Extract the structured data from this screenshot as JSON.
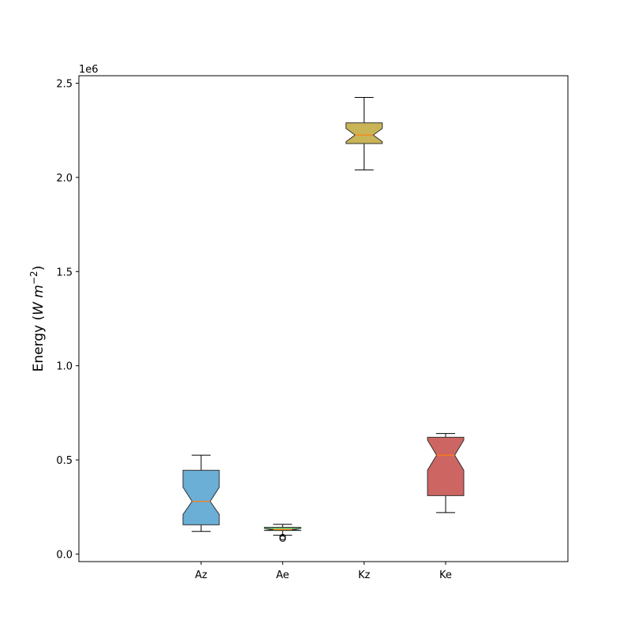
{
  "chart_data": {
    "type": "boxplot",
    "notched": true,
    "ylabel_text": "Energy (",
    "ylabel_math": "W m",
    "ylabel_sup": "−2",
    "ylabel_close": ")",
    "offset_label": "1e6",
    "ylim": [
      -0.04,
      2.54
    ],
    "yticks": [
      0.0,
      0.5,
      1.0,
      1.5,
      2.0,
      2.5
    ],
    "ytick_labels": [
      "0.0",
      "0.5",
      "1.0",
      "1.5",
      "2.0",
      "2.5"
    ],
    "xlim": [
      0,
      6
    ],
    "categories": [
      "Az",
      "Ae",
      "Kz",
      "Ke"
    ],
    "boxes": [
      {
        "label": "Az",
        "min": 0.12,
        "q1": 0.155,
        "median": 0.28,
        "q3": 0.445,
        "max": 0.525,
        "notch_low": 0.21,
        "notch_high": 0.355,
        "outliers": [],
        "color": "#6baed6"
      },
      {
        "label": "Ae",
        "min": 0.1,
        "q1": 0.125,
        "median": 0.13,
        "q3": 0.142,
        "max": 0.158,
        "notch_low": 0.126,
        "notch_high": 0.136,
        "outliers": [
          0.082,
          0.09
        ],
        "color": "#74c476"
      },
      {
        "label": "Kz",
        "min": 2.04,
        "q1": 2.18,
        "median": 2.225,
        "q3": 2.29,
        "max": 2.425,
        "notch_low": 2.19,
        "notch_high": 2.26,
        "outliers": [],
        "color": "#c9b458"
      },
      {
        "label": "Ke",
        "min": 0.22,
        "q1": 0.31,
        "median": 0.525,
        "q3": 0.62,
        "max": 0.64,
        "notch_low": 0.445,
        "notch_high": 0.605,
        "outliers": [],
        "color": "#cd6562"
      }
    ],
    "median_color": "#ff7f0e",
    "grid": false,
    "legend": "none"
  }
}
